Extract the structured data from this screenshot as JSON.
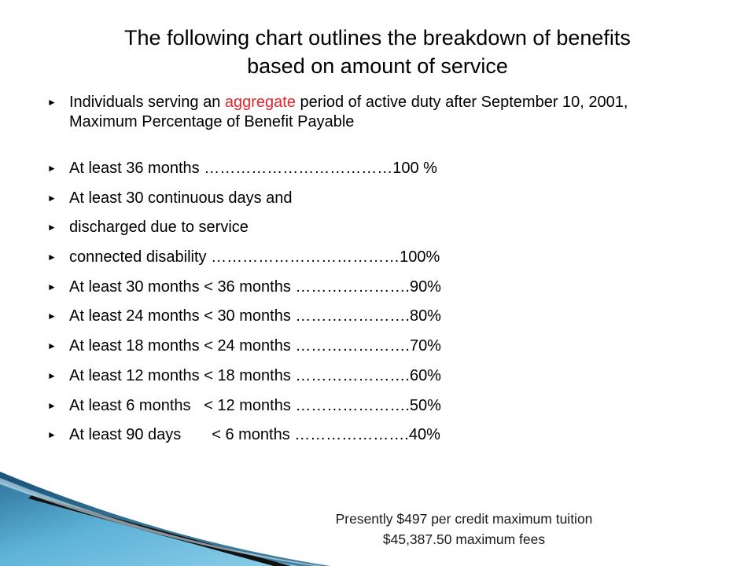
{
  "title": {
    "line1": "The following chart outlines the breakdown of benefits",
    "line2": "based on amount of service"
  },
  "intro": {
    "before": "Individuals serving an ",
    "highlight": "aggregate",
    "after": " period of active duty after September 10, 2001, Maximum Percentage of Benefit Payable",
    "highlight_color": "#e6262b"
  },
  "bullet_icon": "triangle-bullet-icon",
  "items": [
    "At least 36 months ………………………………100 %",
    "At least 30 continuous days and",
    "discharged due to service",
    "connected disability ………………………………100%",
    "At least 30 months < 36 months ………………….90%",
    "At least 24 months < 30 months ………………….80%",
    "At least 18 months < 24 months ………………….70%",
    "At least 12 months < 18 months ………………….60%",
    "At least 6 months   < 12 months ………………….50%",
    "At least 90 days       < 6 months ………………….40%"
  ],
  "footer": {
    "line1": "Presently $497 per credit maximum tuition",
    "line2": "$45,387.50 maximum fees"
  },
  "colors": {
    "accent_red": "#e6262b",
    "decor_blue_dark": "#2a6f99",
    "decor_blue_light": "#8fd0ea",
    "decor_black": "#111111"
  }
}
